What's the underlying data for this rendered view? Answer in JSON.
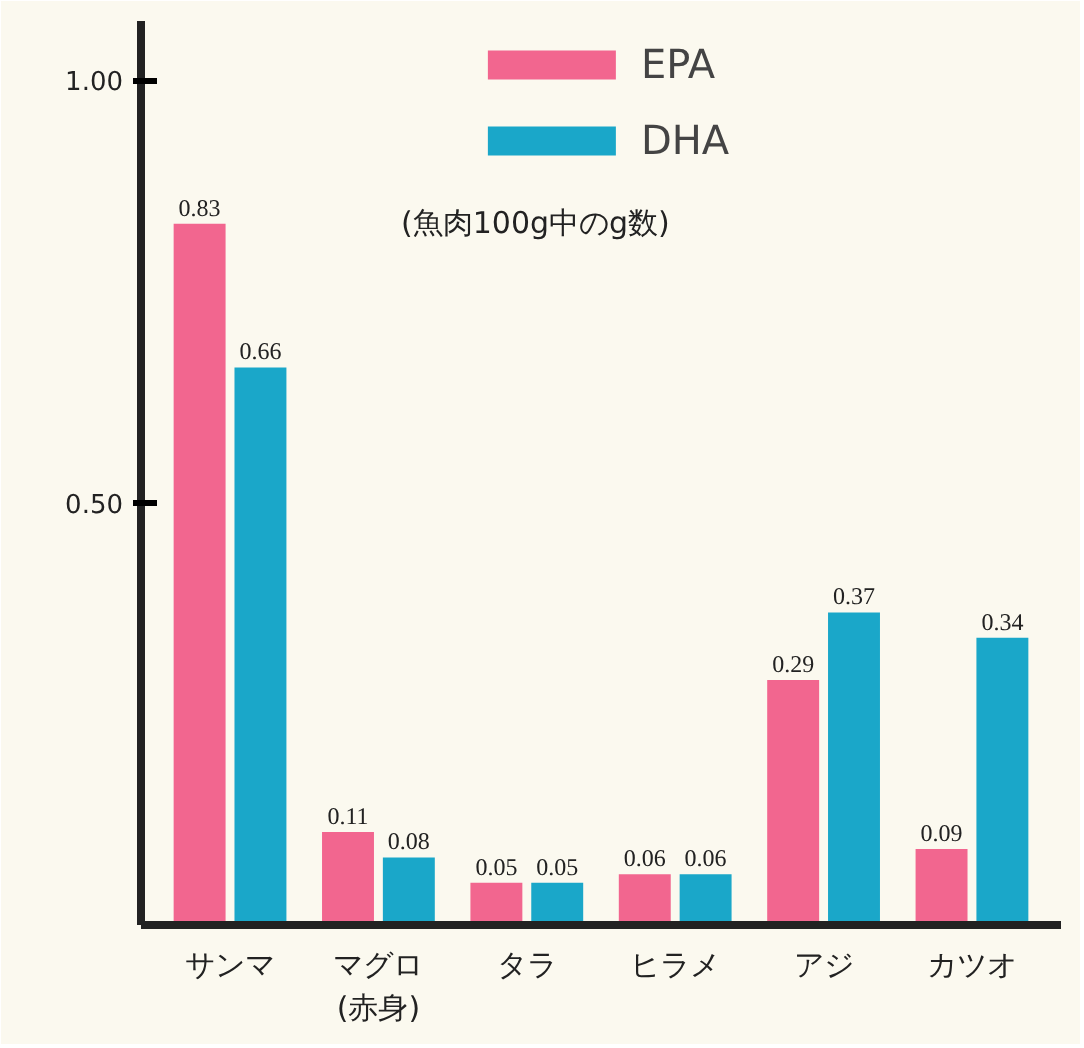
{
  "chart_data": {
    "type": "bar",
    "subtitle": "(魚肉100g中のg数)",
    "categories": [
      "サンマ",
      "マグロ\n(赤身)",
      "タラ",
      "ヒラメ",
      "アジ",
      "カツオ"
    ],
    "series": [
      {
        "name": "EPA",
        "color": "#f2668f",
        "values": [
          0.83,
          0.11,
          0.05,
          0.06,
          0.29,
          0.09
        ]
      },
      {
        "name": "DHA",
        "color": "#1aa7c9",
        "values": [
          0.66,
          0.08,
          0.05,
          0.06,
          0.37,
          0.34
        ]
      }
    ],
    "ylim": [
      0,
      1.07
    ],
    "yticks": [
      {
        "value": 0.5,
        "label": "0.50"
      },
      {
        "value": 1,
        "label": "1.00"
      }
    ],
    "data_labels": true,
    "legend": "top",
    "grid": false
  }
}
